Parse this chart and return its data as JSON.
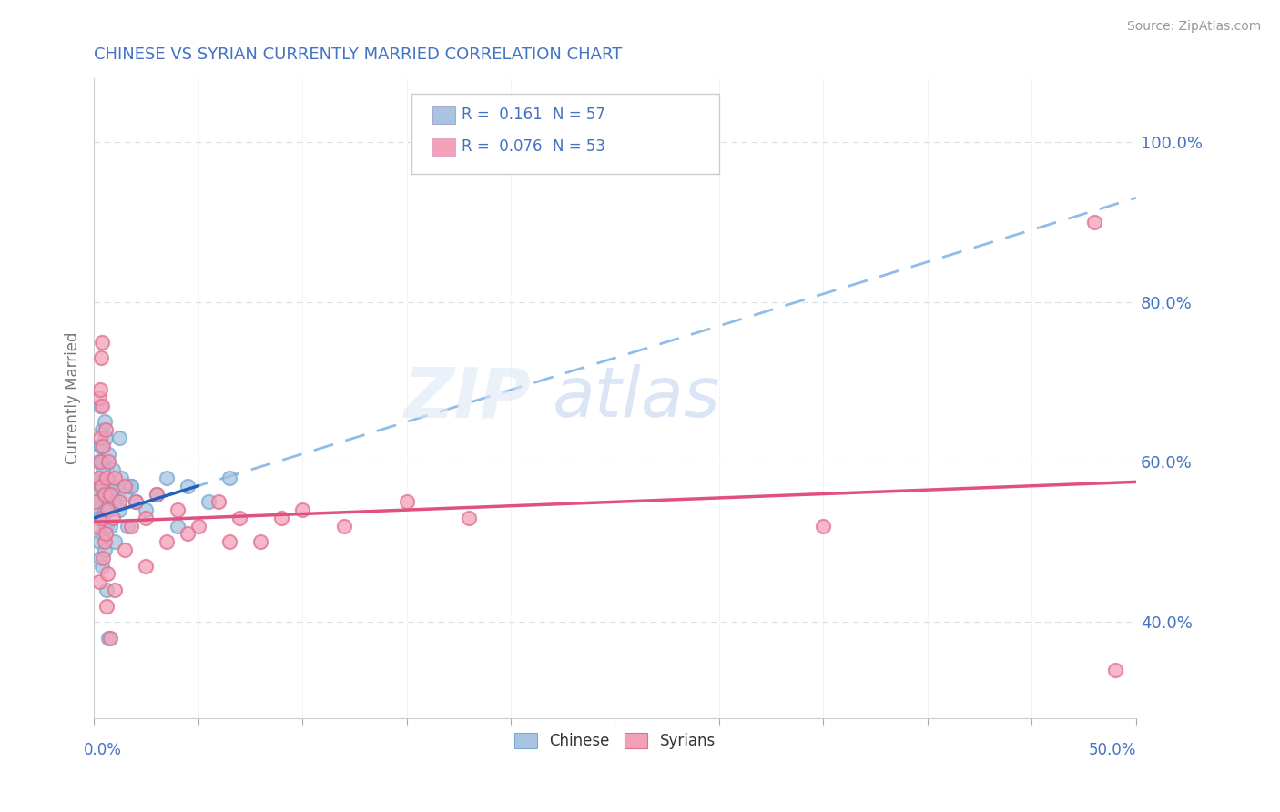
{
  "title": "CHINESE VS SYRIAN CURRENTLY MARRIED CORRELATION CHART",
  "source": "Source: ZipAtlas.com",
  "ylabel": "Currently Married",
  "xlim": [
    0.0,
    50.0
  ],
  "ylim": [
    28.0,
    108.0
  ],
  "ytick_vals": [
    40.0,
    60.0,
    80.0,
    100.0
  ],
  "chinese_color": "#a8c4e0",
  "chinese_edge_color": "#7aaad0",
  "syrian_color": "#f4a0b8",
  "syrian_edge_color": "#e07090",
  "chinese_line_color": "#2060c0",
  "syrian_line_color": "#e05080",
  "chinese_dashed_color": "#90bce8",
  "legend_R_chinese": "R =  0.161",
  "legend_N_chinese": "N = 57",
  "legend_R_syrian": "R =  0.076",
  "legend_N_syrian": "N = 53",
  "background_color": "#ffffff",
  "grid_color": "#d8e0ec",
  "title_color": "#4472c4",
  "axis_label_color": "#4472c4",
  "watermark_color": "#d0ddf0",
  "chinese_x": [
    0.1,
    0.15,
    0.2,
    0.2,
    0.25,
    0.25,
    0.3,
    0.3,
    0.3,
    0.35,
    0.35,
    0.4,
    0.4,
    0.4,
    0.45,
    0.45,
    0.5,
    0.5,
    0.5,
    0.5,
    0.55,
    0.55,
    0.6,
    0.6,
    0.65,
    0.7,
    0.7,
    0.75,
    0.8,
    0.85,
    0.9,
    1.0,
    1.0,
    1.1,
    1.2,
    1.3,
    1.5,
    1.6,
    1.8,
    2.0,
    2.5,
    3.0,
    3.5,
    4.0,
    4.5,
    5.5,
    6.5,
    0.4,
    0.5,
    0.3,
    0.25,
    0.35,
    0.45,
    0.6,
    0.7,
    1.2,
    1.8
  ],
  "chinese_y": [
    53.0,
    56.0,
    60.0,
    54.0,
    58.0,
    50.0,
    55.0,
    62.0,
    48.0,
    57.0,
    53.0,
    64.0,
    58.0,
    51.0,
    56.0,
    60.0,
    54.0,
    49.0,
    52.0,
    58.0,
    63.0,
    56.0,
    52.0,
    59.0,
    55.0,
    57.0,
    61.0,
    54.0,
    52.0,
    56.0,
    59.0,
    55.0,
    50.0,
    57.0,
    54.0,
    58.0,
    56.0,
    52.0,
    57.0,
    55.0,
    54.0,
    56.0,
    58.0,
    52.0,
    57.0,
    55.0,
    58.0,
    47.0,
    65.0,
    67.0,
    53.0,
    62.0,
    59.0,
    44.0,
    38.0,
    63.0,
    57.0
  ],
  "syrian_x": [
    0.1,
    0.15,
    0.2,
    0.25,
    0.3,
    0.3,
    0.35,
    0.4,
    0.4,
    0.45,
    0.5,
    0.5,
    0.55,
    0.6,
    0.65,
    0.7,
    0.8,
    0.9,
    1.0,
    1.2,
    1.5,
    1.8,
    2.0,
    2.5,
    3.0,
    3.5,
    4.0,
    5.0,
    6.0,
    7.0,
    8.0,
    10.0,
    12.0,
    15.0,
    18.0,
    0.35,
    0.25,
    0.45,
    0.55,
    0.65,
    1.0,
    1.5,
    2.5,
    4.5,
    6.5,
    9.0,
    35.0,
    48.0,
    0.3,
    0.4,
    0.6,
    0.8,
    49.0
  ],
  "syrian_y": [
    55.0,
    52.0,
    58.0,
    68.0,
    60.0,
    63.0,
    57.0,
    53.0,
    67.0,
    62.0,
    56.0,
    50.0,
    64.0,
    58.0,
    54.0,
    60.0,
    56.0,
    53.0,
    58.0,
    55.0,
    57.0,
    52.0,
    55.0,
    53.0,
    56.0,
    50.0,
    54.0,
    52.0,
    55.0,
    53.0,
    50.0,
    54.0,
    52.0,
    55.0,
    53.0,
    73.0,
    45.0,
    48.0,
    51.0,
    46.0,
    44.0,
    49.0,
    47.0,
    51.0,
    50.0,
    53.0,
    52.0,
    90.0,
    69.0,
    75.0,
    42.0,
    38.0,
    34.0
  ]
}
